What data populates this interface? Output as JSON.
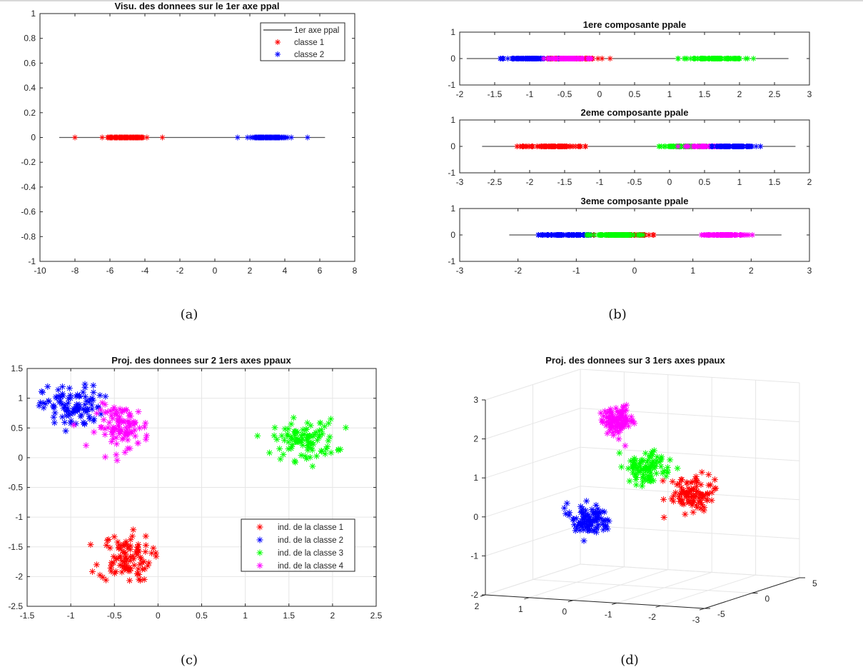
{
  "figure": {
    "captions": [
      "(a)",
      "(b)",
      "(c)",
      "(d)"
    ]
  },
  "colors": {
    "classe1": "#ff0000",
    "classe2": "#0000ff",
    "classe3": "#00ff00",
    "classe4": "#ff00ff",
    "axis_line": "#000000",
    "grid": "#e6e6e6",
    "box": "#262626"
  },
  "chart_data": [
    {
      "id": "a",
      "type": "scatter",
      "title": "Visu. des donnees sur le 1er axe ppal",
      "xlabel": "",
      "ylabel": "",
      "xlim": [
        -10,
        8
      ],
      "ylim": [
        -1,
        1
      ],
      "xticks": [
        "-10",
        "-8",
        "-6",
        "-4",
        "-2",
        "0",
        "2",
        "4",
        "6",
        "8"
      ],
      "yticks": [
        "-1",
        "-0.8",
        "-0.6",
        "-0.4",
        "-0.2",
        "0",
        "0.2",
        "0.4",
        "0.6",
        "0.8",
        "1"
      ],
      "grid": false,
      "legend": {
        "placement": "top-right",
        "entries": [
          "1er axe ppal",
          "classe 1",
          "classe 2"
        ]
      },
      "line": {
        "name": "1er axe ppal",
        "x": [
          -8.9,
          6.3
        ],
        "y": [
          0,
          0
        ]
      },
      "series": [
        {
          "name": "classe 1",
          "color_key": "classe1",
          "marker": "*",
          "y": 0,
          "center": -5.0,
          "spread": 0.55,
          "count": 100,
          "range": [
            -8.0,
            -3.0
          ]
        },
        {
          "name": "classe 2",
          "color_key": "classe2",
          "marker": "*",
          "y": 0,
          "center": 3.0,
          "spread": 0.55,
          "count": 100,
          "range": [
            1.3,
            5.3
          ]
        }
      ]
    },
    {
      "id": "b",
      "type": "scatter",
      "subplots": [
        {
          "title": "1ere composante ppale",
          "xlim": [
            -2,
            3
          ],
          "ylim": [
            -1,
            1
          ],
          "xticks": [
            "-2",
            "-1.5",
            "-1",
            "-0.5",
            "0",
            "0.5",
            "1",
            "1.5",
            "2",
            "2.5",
            "3"
          ],
          "yticks": [
            "-1",
            "0",
            "1"
          ],
          "line": {
            "x": [
              -1.9,
              2.7
            ],
            "y": [
              0,
              0
            ]
          },
          "series": [
            {
              "name": "classe 1",
              "color_key": "classe1",
              "center": -0.4,
              "spread": 0.2,
              "count": 100,
              "range": [
                -0.75,
                0.15
              ]
            },
            {
              "name": "classe 2",
              "color_key": "classe2",
              "center": -1.0,
              "spread": 0.18,
              "count": 100,
              "range": [
                -1.42,
                -0.55
              ]
            },
            {
              "name": "classe 4",
              "color_key": "classe4",
              "center": -0.42,
              "spread": 0.15,
              "count": 100,
              "range": [
                -0.8,
                -0.12
              ]
            },
            {
              "name": "classe 3",
              "color_key": "classe3",
              "center": 1.65,
              "spread": 0.2,
              "count": 100,
              "range": [
                1.12,
                2.2
              ]
            }
          ]
        },
        {
          "title": "2eme composante ppale",
          "xlim": [
            -3,
            2
          ],
          "ylim": [
            -1,
            1
          ],
          "xticks": [
            "-3",
            "-2.5",
            "-2",
            "-1.5",
            "-1",
            "-0.5",
            "0",
            "0.5",
            "1",
            "1.5",
            "2"
          ],
          "yticks": [
            "-1",
            "0",
            "1"
          ],
          "line": {
            "x": [
              -2.68,
              1.8
            ],
            "y": [
              0,
              0
            ]
          },
          "series": [
            {
              "name": "classe 1",
              "color_key": "classe1",
              "center": -1.7,
              "spread": 0.22,
              "count": 100,
              "range": [
                -2.18,
                -1.2
              ]
            },
            {
              "name": "classe 3",
              "color_key": "classe3",
              "center": 0.25,
              "spread": 0.22,
              "count": 100,
              "range": [
                -0.15,
                0.8
              ]
            },
            {
              "name": "classe 4",
              "color_key": "classe4",
              "center": 0.55,
              "spread": 0.2,
              "count": 100,
              "range": [
                0.12,
                0.98
              ]
            },
            {
              "name": "classe 2",
              "color_key": "classe2",
              "center": 0.95,
              "spread": 0.15,
              "count": 100,
              "range": [
                0.6,
                1.3
              ]
            }
          ]
        },
        {
          "title": "3eme composante ppale",
          "xlim": [
            -3,
            3
          ],
          "ylim": [
            -1,
            1
          ],
          "xticks": [
            "-3",
            "-2",
            "-1",
            "0",
            "1",
            "2",
            "3"
          ],
          "yticks": [
            "-1",
            "0",
            "1"
          ],
          "line": {
            "x": [
              -2.15,
              2.52
            ],
            "y": [
              0,
              0
            ]
          },
          "series": [
            {
              "name": "classe 2",
              "color_key": "classe2",
              "center": -1.15,
              "spread": 0.25,
              "count": 100,
              "range": [
                -1.65,
                -0.7
              ]
            },
            {
              "name": "classe 1",
              "color_key": "classe1",
              "center": -0.2,
              "spread": 0.22,
              "count": 100,
              "range": [
                -0.7,
                0.33
              ]
            },
            {
              "name": "classe 3",
              "color_key": "classe3",
              "center": -0.35,
              "spread": 0.25,
              "count": 100,
              "range": [
                -0.82,
                0.15
              ]
            },
            {
              "name": "classe 4",
              "color_key": "classe4",
              "center": 1.55,
              "spread": 0.22,
              "count": 100,
              "range": [
                1.15,
                2.02
              ]
            }
          ]
        }
      ]
    },
    {
      "id": "c",
      "type": "scatter",
      "title": "Proj. des donnees sur 2 1ers axes ppaux",
      "xlabel": "",
      "ylabel": "",
      "xlim": [
        -1.5,
        2.5
      ],
      "ylim": [
        -2.5,
        1.5
      ],
      "xticks": [
        "-1.5",
        "-1",
        "-0.5",
        "0",
        "0.5",
        "1",
        "1.5",
        "2",
        "2.5"
      ],
      "yticks": [
        "-2.5",
        "-2",
        "-1.5",
        "-1",
        "-0.5",
        "0",
        "0.5",
        "1",
        "1.5"
      ],
      "grid": true,
      "legend": {
        "placement": "lower-right",
        "entries": [
          "ind. de la classe 1",
          "ind. de la classe 2",
          "ind. de la classe 3",
          "ind. de la classe 4"
        ]
      },
      "series": [
        {
          "name": "ind. de la classe 1",
          "color_key": "classe1",
          "center": [
            -0.38,
            -1.68
          ],
          "spread": [
            0.15,
            0.2
          ],
          "count": 100
        },
        {
          "name": "ind. de la classe 2",
          "color_key": "classe2",
          "center": [
            -0.98,
            0.85
          ],
          "spread": [
            0.17,
            0.18
          ],
          "count": 100
        },
        {
          "name": "ind. de la classe 3",
          "color_key": "classe3",
          "center": [
            1.68,
            0.3
          ],
          "spread": [
            0.18,
            0.17
          ],
          "count": 100
        },
        {
          "name": "ind. de la classe 4",
          "color_key": "classe4",
          "center": [
            -0.4,
            0.52
          ],
          "spread": [
            0.15,
            0.18
          ],
          "count": 100
        }
      ]
    },
    {
      "id": "d",
      "type": "scatter",
      "title": "Proj. des donnees sur 3 1ers axes ppaux",
      "xlim": [
        -3,
        2
      ],
      "ylim": [
        -5,
        5
      ],
      "zlim": [
        -2,
        3
      ],
      "xticks": [
        "2",
        "1",
        "0",
        "-1",
        "-2",
        "-3"
      ],
      "yticks": [
        "-5",
        "0",
        "5"
      ],
      "zticks": [
        "-2",
        "-1",
        "0",
        "1",
        "2",
        "3"
      ],
      "grid": true,
      "series": [
        {
          "name": "classe 1",
          "color_key": "classe1",
          "center": [
            -1.55,
            0.5,
            0.4
          ],
          "spread": [
            0.22,
            0.5,
            0.2
          ],
          "count": 100
        },
        {
          "name": "classe 2",
          "color_key": "classe2",
          "center": [
            0.7,
            -0.3,
            -0.4
          ],
          "spread": [
            0.2,
            0.45,
            0.2
          ],
          "count": 100
        },
        {
          "name": "classe 3",
          "color_key": "classe3",
          "center": [
            -0.4,
            0.8,
            0.95
          ],
          "spread": [
            0.2,
            0.45,
            0.2
          ],
          "count": 100
        },
        {
          "name": "classe 4",
          "color_key": "classe4",
          "center": [
            0.5,
            2.0,
            2.0
          ],
          "spread": [
            0.15,
            0.4,
            0.18
          ],
          "count": 100
        }
      ]
    }
  ]
}
